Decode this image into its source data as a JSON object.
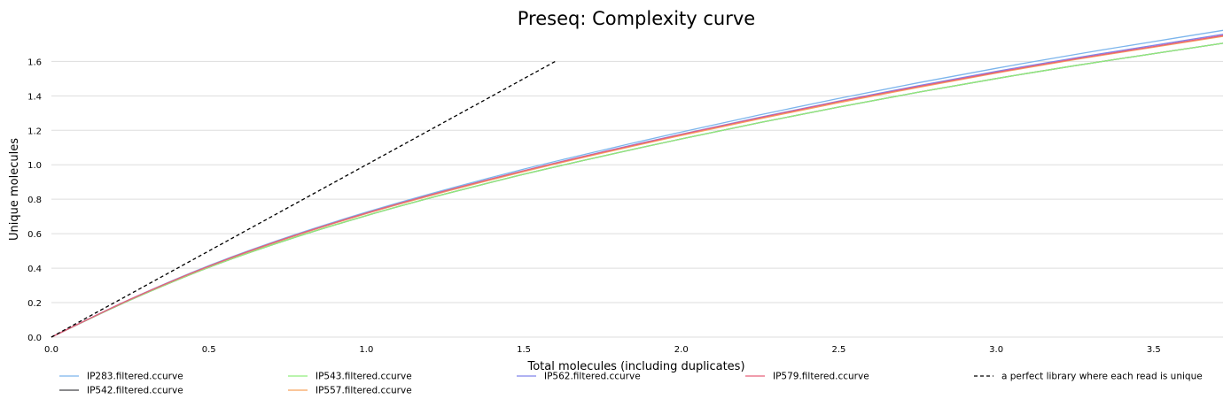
{
  "chart_data": {
    "type": "line",
    "title": "Preseq: Complexity curve",
    "xlabel": "Total molecules (including duplicates)",
    "ylabel": "Unique molecules",
    "xlim": [
      0,
      3.72
    ],
    "ylim": [
      0,
      1.72
    ],
    "xticks": [
      "0.0",
      "0.5",
      "1.0",
      "1.5",
      "2.0",
      "2.5",
      "3.0",
      "3.5"
    ],
    "yticks": [
      "0.0",
      "0.2",
      "0.4",
      "0.6",
      "0.8",
      "1.0",
      "1.2",
      "1.4",
      "1.6"
    ],
    "grid": true,
    "legend_position": "bottom",
    "x": [
      0,
      0.25,
      0.5,
      0.75,
      1.0,
      1.25,
      1.5,
      1.75,
      2.0,
      2.25,
      2.5,
      2.75,
      3.0,
      3.25,
      3.5,
      3.72
    ],
    "series": [
      {
        "name": "IP283.filtered.ccurve",
        "color": "#7cb5ec",
        "style": "solid",
        "values": [
          0,
          0.22,
          0.415,
          0.58,
          0.725,
          0.855,
          0.975,
          1.085,
          1.19,
          1.29,
          1.385,
          1.475,
          1.56,
          1.64,
          1.715,
          1.78
        ]
      },
      {
        "name": "IP542.filtered.ccurve",
        "color": "#434348",
        "style": "solid",
        "values": [
          0,
          0.215,
          0.405,
          0.565,
          0.705,
          0.83,
          0.945,
          1.05,
          1.15,
          1.245,
          1.335,
          1.42,
          1.5,
          1.575,
          1.645,
          1.705
        ]
      },
      {
        "name": "IP543.filtered.ccurve",
        "color": "#90ed7d",
        "style": "solid",
        "values": [
          0,
          0.215,
          0.405,
          0.565,
          0.705,
          0.83,
          0.945,
          1.05,
          1.15,
          1.245,
          1.335,
          1.42,
          1.5,
          1.575,
          1.645,
          1.705
        ]
      },
      {
        "name": "IP557.filtered.ccurve",
        "color": "#f7a35c",
        "style": "solid",
        "values": [
          0,
          0.218,
          0.41,
          0.573,
          0.716,
          0.843,
          0.96,
          1.068,
          1.17,
          1.267,
          1.36,
          1.448,
          1.532,
          1.61,
          1.682,
          1.745
        ]
      },
      {
        "name": "IP562.filtered.ccurve",
        "color": "#8085e9",
        "style": "solid",
        "values": [
          0,
          0.219,
          0.412,
          0.576,
          0.72,
          0.848,
          0.966,
          1.075,
          1.178,
          1.276,
          1.37,
          1.458,
          1.542,
          1.62,
          1.693,
          1.757
        ]
      },
      {
        "name": "IP579.filtered.ccurve",
        "color": "#e8607a",
        "style": "solid",
        "values": [
          0,
          0.219,
          0.412,
          0.576,
          0.72,
          0.848,
          0.965,
          1.073,
          1.176,
          1.273,
          1.366,
          1.453,
          1.536,
          1.614,
          1.686,
          1.75
        ]
      },
      {
        "name": "a perfect library where each read is unique",
        "color": "#000000",
        "style": "dashed",
        "x": [
          0,
          1.6
        ],
        "values": [
          0,
          1.6
        ]
      }
    ]
  }
}
